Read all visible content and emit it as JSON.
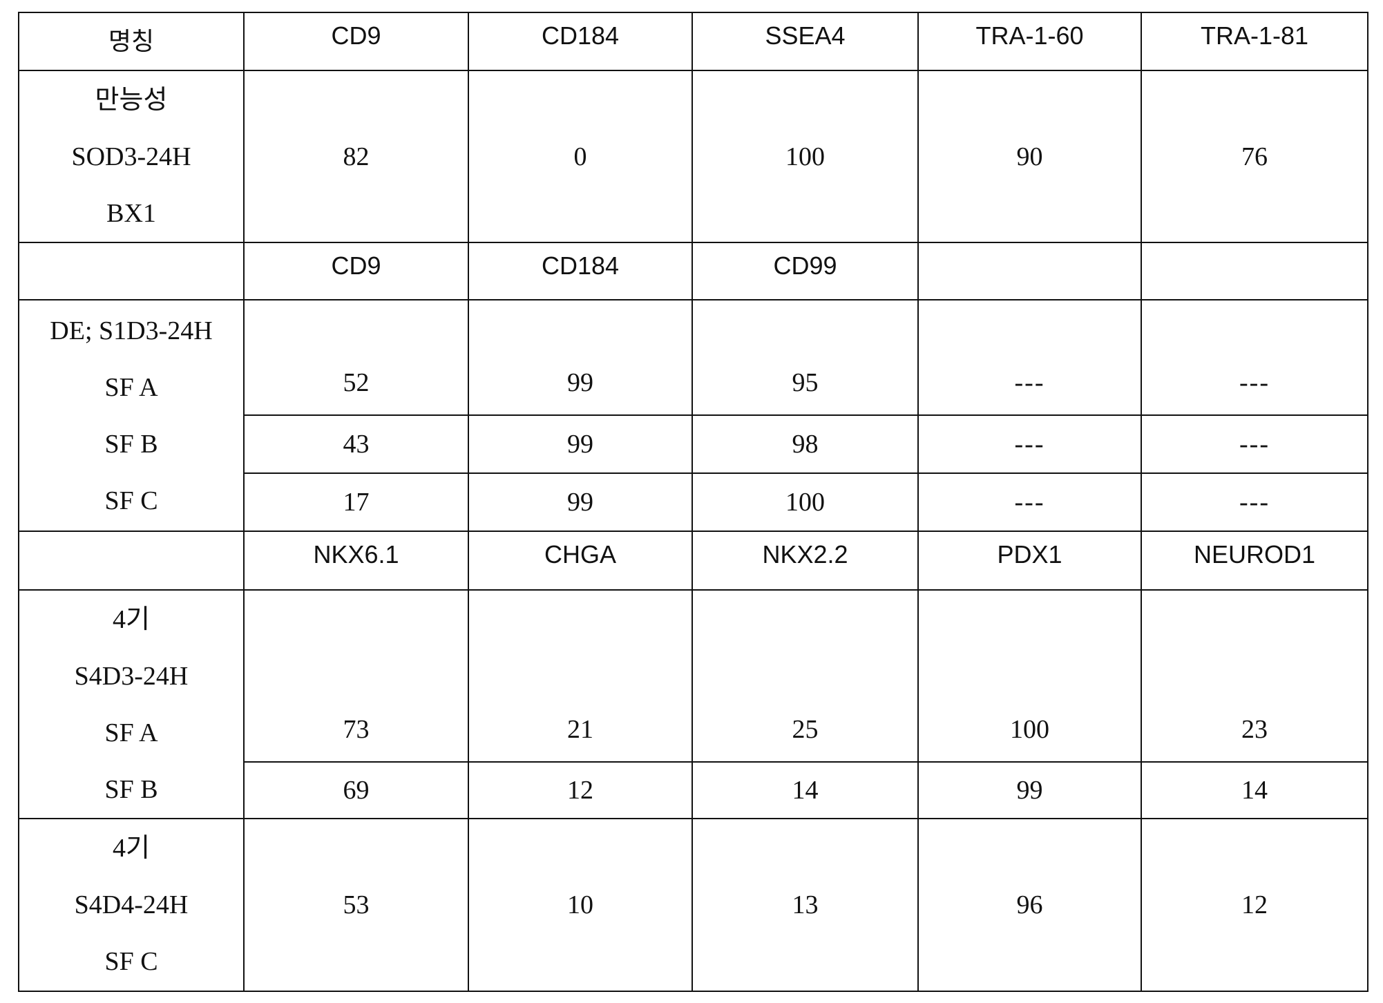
{
  "header": [
    "명칭",
    "CD9",
    "CD184",
    "SSEA4",
    "TRA-1-60",
    "TRA-1-81"
  ],
  "pluripotent": {
    "label": [
      "만능성",
      "SOD3-24H",
      "BX1"
    ],
    "values": [
      "82",
      "0",
      "100",
      "90",
      "76"
    ]
  },
  "de_header": [
    "",
    "CD9",
    "CD184",
    "CD99",
    "",
    ""
  ],
  "de": {
    "label": [
      "DE; S1D3-24H",
      "SF A",
      "SF B",
      "SF C"
    ],
    "rows": [
      [
        "52",
        "99",
        "95",
        "---",
        "---"
      ],
      [
        "43",
        "99",
        "98",
        "---",
        "---"
      ],
      [
        "17",
        "99",
        "100",
        "---",
        "---"
      ]
    ]
  },
  "stage4_header": [
    "",
    "NKX6.1",
    "CHGA",
    "NKX2.2",
    "PDX1",
    "NEUROD1"
  ],
  "s4d3": {
    "label": [
      "4기",
      "S4D3-24H",
      "SF A",
      "SF B"
    ],
    "rows": [
      [
        "73",
        "21",
        "25",
        "100",
        "23"
      ],
      [
        "69",
        "12",
        "14",
        "99",
        "14"
      ]
    ]
  },
  "s4d4": {
    "label": [
      "4기",
      "S4D4-24H",
      "SF C"
    ],
    "values": [
      "53",
      "10",
      "13",
      "96",
      "12"
    ]
  }
}
